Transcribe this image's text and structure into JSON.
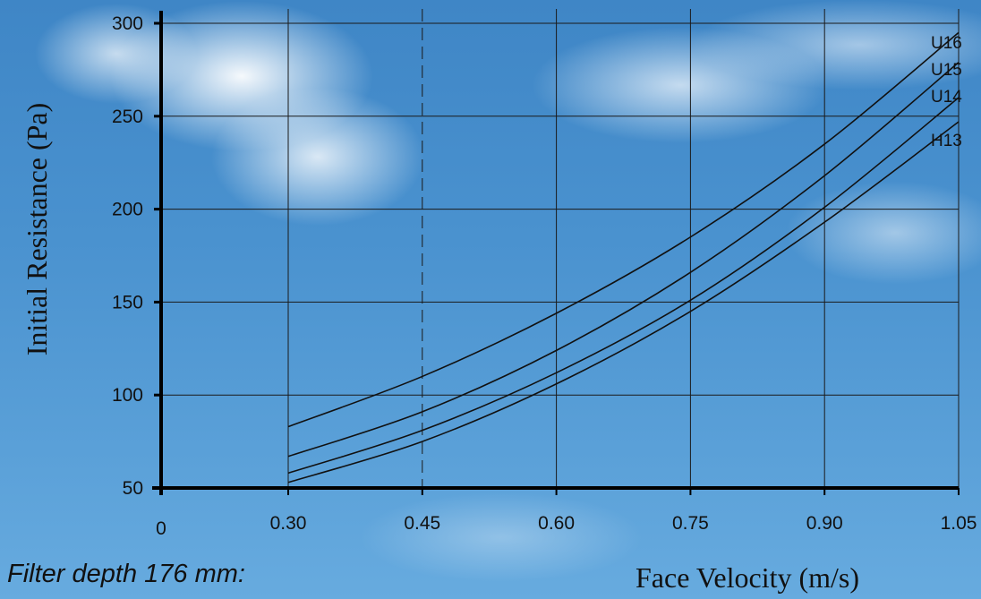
{
  "chart_data": {
    "type": "line",
    "xlabel": "Face Velocity (m/s)",
    "ylabel": "Initial Resistance (Pa)",
    "x_origin_label": "0",
    "x_ticks": [
      "0.30",
      "0.45",
      "0.60",
      "0.75",
      "0.90",
      "1.05"
    ],
    "y_ticks": [
      "50",
      "100",
      "150",
      "200",
      "250",
      "300"
    ],
    "xlim": [
      0.15,
      1.05
    ],
    "ylim": [
      50,
      300
    ],
    "grid": true,
    "reference_line_x": 0.45,
    "series": [
      {
        "name": "U16",
        "x": [
          0.3,
          0.45,
          0.6,
          0.75,
          0.9,
          1.05
        ],
        "values": [
          83,
          110,
          144,
          185,
          235,
          295
        ]
      },
      {
        "name": "U15",
        "x": [
          0.3,
          0.45,
          0.6,
          0.75,
          0.9,
          1.05
        ],
        "values": [
          67,
          91,
          124,
          166,
          218,
          279
        ]
      },
      {
        "name": "U14",
        "x": [
          0.3,
          0.45,
          0.6,
          0.75,
          0.9,
          1.05
        ],
        "values": [
          58,
          81,
          112,
          151,
          201,
          260
        ]
      },
      {
        "name": "H13",
        "x": [
          0.3,
          0.45,
          0.6,
          0.75,
          0.9,
          1.05
        ],
        "values": [
          53,
          75,
          106,
          145,
          193,
          247
        ]
      }
    ]
  },
  "note": "Filter depth 176 mm:"
}
